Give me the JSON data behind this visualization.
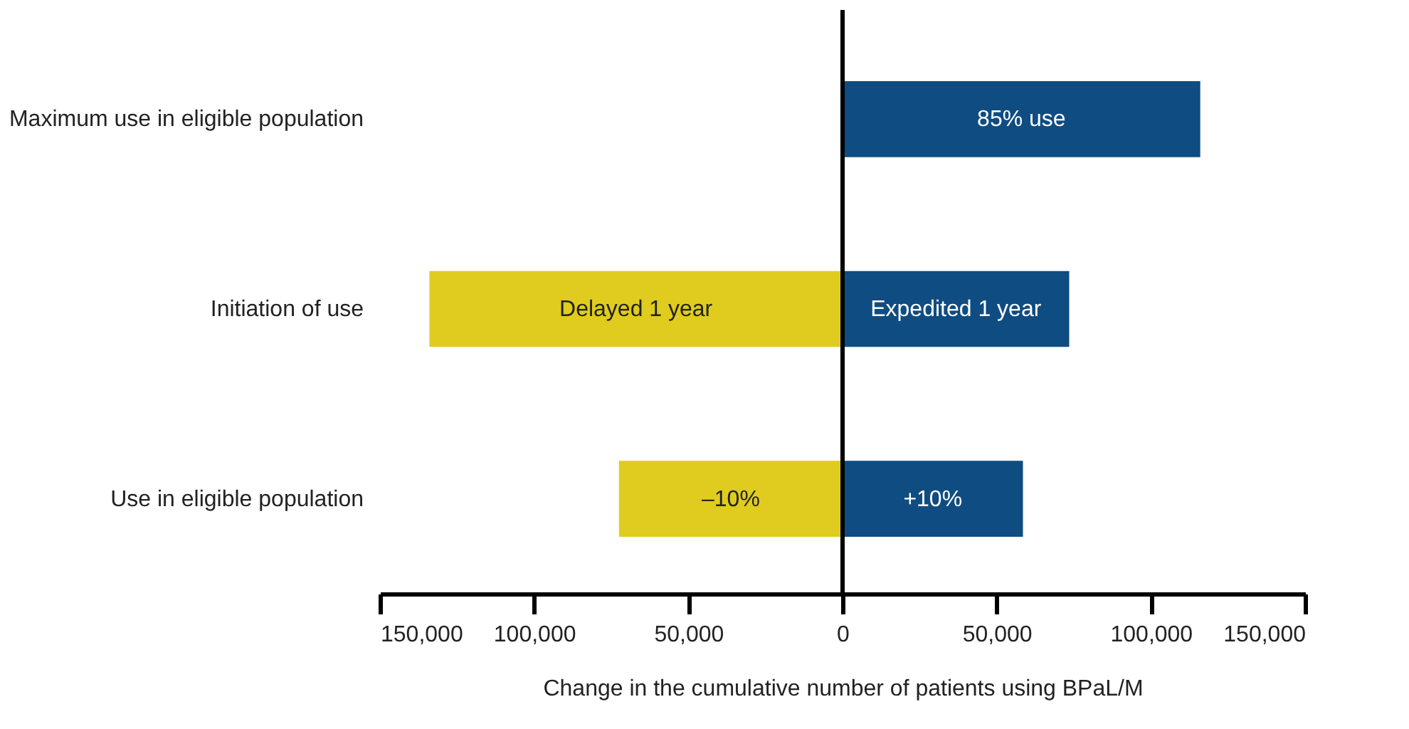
{
  "chart_data": {
    "type": "bar",
    "orientation": "horizontal",
    "stacked": true,
    "categories": [
      "Maximum use in eligible population",
      "Initiation of use",
      "Use in eligible population"
    ],
    "series": [
      {
        "color": "#e0cc1f",
        "values": [
          null,
          -134000,
          -72500
        ]
      },
      {
        "color": "#0f4c81",
        "values": [
          116000,
          73500,
          58500
        ]
      }
    ],
    "annotations": [
      "85% use",
      "Delayed 1 year",
      "Expedited 1 year",
      "–10%",
      "+10%"
    ],
    "xlim": [
      -150000,
      150000
    ],
    "xticks": [
      {
        "value": -150000,
        "label": "150,000"
      },
      {
        "value": -100000,
        "label": "100,000"
      },
      {
        "value": -50000,
        "label": "50,000"
      },
      0,
      {
        "value": 50000,
        "label": "50,000"
      },
      {
        "value": 100000,
        "label": "100,000"
      },
      {
        "value": 150000,
        "label": "150,000"
      }
    ],
    "xlabel": "Change in the cumulative number of patients using BPaL/M",
    "ref_lines": [
      {
        "axis": "x",
        "value": 0,
        "color": "#000000"
      }
    ],
    "grid": false
  }
}
